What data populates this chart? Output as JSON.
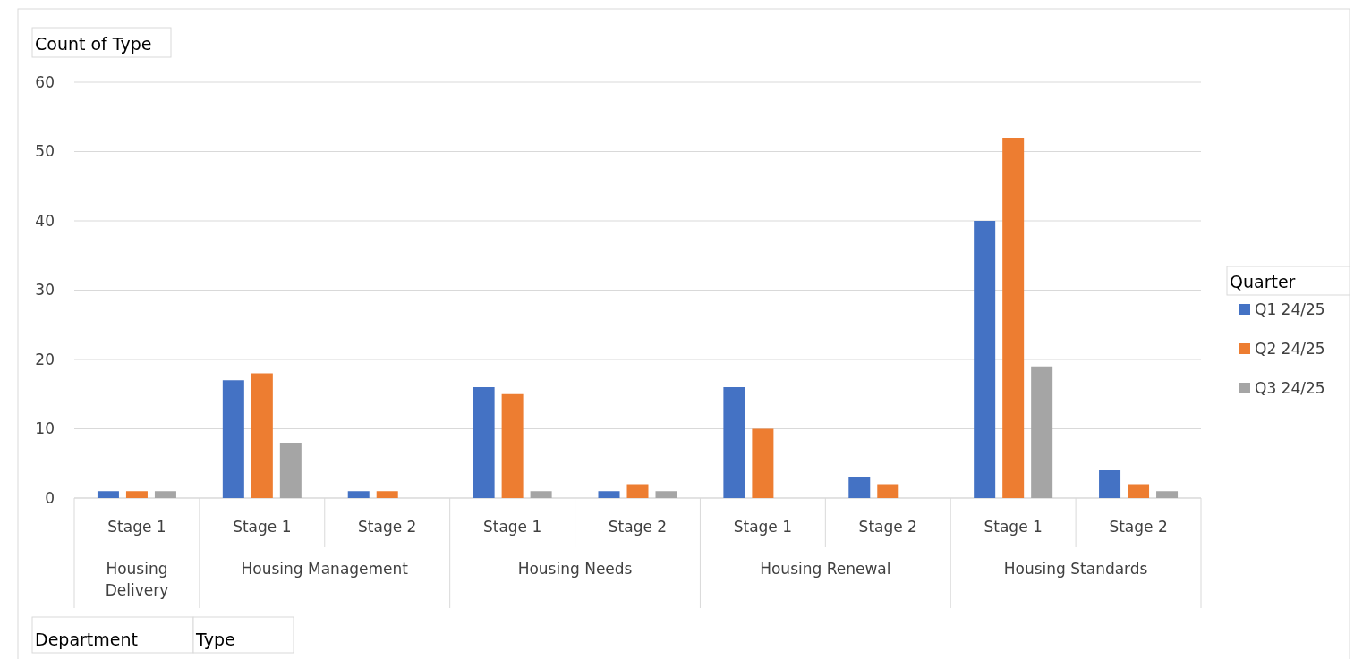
{
  "chart_data": {
    "type": "bar",
    "ylabel": "Count of Type",
    "legend_title": "Quarter",
    "categories": [
      "Stage 1",
      "Stage 1",
      "Stage 2",
      "Stage 1",
      "Stage 2",
      "Stage 1",
      "Stage 2",
      "Stage 1",
      "Stage 2"
    ],
    "series": [
      {
        "name": "Q1 24/25",
        "color": "#4472c4",
        "values": [
          1,
          17,
          1,
          16,
          1,
          16,
          3,
          40,
          4
        ]
      },
      {
        "name": "Q2 24/25",
        "color": "#ed7d31",
        "values": [
          1,
          18,
          1,
          15,
          2,
          10,
          2,
          52,
          2
        ]
      },
      {
        "name": "Q3 24/25",
        "color": "#a5a5a5",
        "values": [
          1,
          8,
          null,
          1,
          1,
          null,
          null,
          19,
          1
        ]
      }
    ],
    "ylim": [
      0,
      60
    ],
    "yticks": [
      0,
      10,
      20,
      30,
      40,
      50,
      60
    ],
    "grid": "y",
    "legend": "right",
    "annotations": [
      "Housing Delivery",
      "Housing Management",
      "Housing Needs",
      "Housing Renewal",
      "Housing Standards",
      "Department",
      "Type"
    ]
  }
}
